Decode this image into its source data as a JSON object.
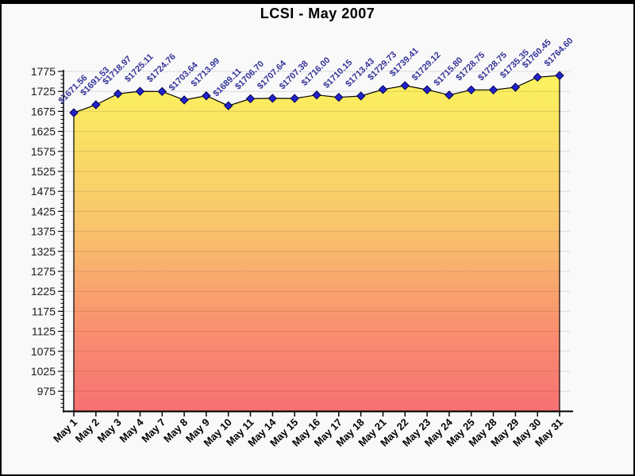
{
  "frame": {
    "background": "#F9F9F9",
    "border_color": "#000000"
  },
  "chart_data": {
    "type": "area",
    "title": "LCSI - May 2007",
    "categories": [
      "May 1",
      "May 2",
      "May 3",
      "May 4",
      "May 7",
      "May 8",
      "May 9",
      "May 10",
      "May 11",
      "May 14",
      "May 15",
      "May 16",
      "May 17",
      "May 18",
      "May 21",
      "May 22",
      "May 23",
      "May 24",
      "May 25",
      "May 28",
      "May 29",
      "May 30",
      "May 31"
    ],
    "series": [
      {
        "name": "LCSI",
        "values": [
          1671.56,
          1691.53,
          1718.97,
          1725.11,
          1724.76,
          1703.64,
          1713.99,
          1689.11,
          1706.7,
          1707.64,
          1707.38,
          1716.0,
          1710.15,
          1713.43,
          1729.73,
          1739.41,
          1729.12,
          1715.8,
          1728.75,
          1728.75,
          1735.35,
          1760.45,
          1764.6
        ]
      }
    ],
    "point_labels": [
      "$1671.56",
      "$1691.53",
      "$1718.97",
      "$1725.11",
      "$1724.76",
      "$1703.64",
      "$1713.99",
      "$1689.11",
      "$1706.70",
      "$1707.64",
      "$1707.38",
      "$1716.00",
      "$1710.15",
      "$1713.43",
      "$1729.73",
      "$1739.41",
      "$1729.12",
      "$1715.80",
      "$1728.75",
      "$1728.75",
      "$1735.35",
      "$1760.45",
      "$1764.60"
    ],
    "xlabel": "",
    "ylabel": "",
    "ylim": [
      925,
      1780
    ],
    "yticks": [
      975,
      1025,
      1075,
      1125,
      1175,
      1225,
      1275,
      1325,
      1375,
      1425,
      1475,
      1525,
      1575,
      1625,
      1675,
      1725,
      1775
    ],
    "ytick_step": 50,
    "y_minor_tick_step": 10,
    "grid": true,
    "legend": "none",
    "styles": {
      "area_gradient_top": "#FBF35E",
      "area_gradient_mid": "#F9C46C",
      "area_gradient_low": "#F9906F",
      "area_gradient_bottom": "#F87173",
      "area_outline_color": "#000000",
      "marker_fill": "#2222CC",
      "marker_stroke": "#00004D",
      "data_label_color": "#333399",
      "y_label_color": "#1A1A1A",
      "x_label_color": "#000000",
      "grid_color": "#E0E0E0",
      "axis_color": "#000000",
      "title_color": "#000000"
    }
  }
}
